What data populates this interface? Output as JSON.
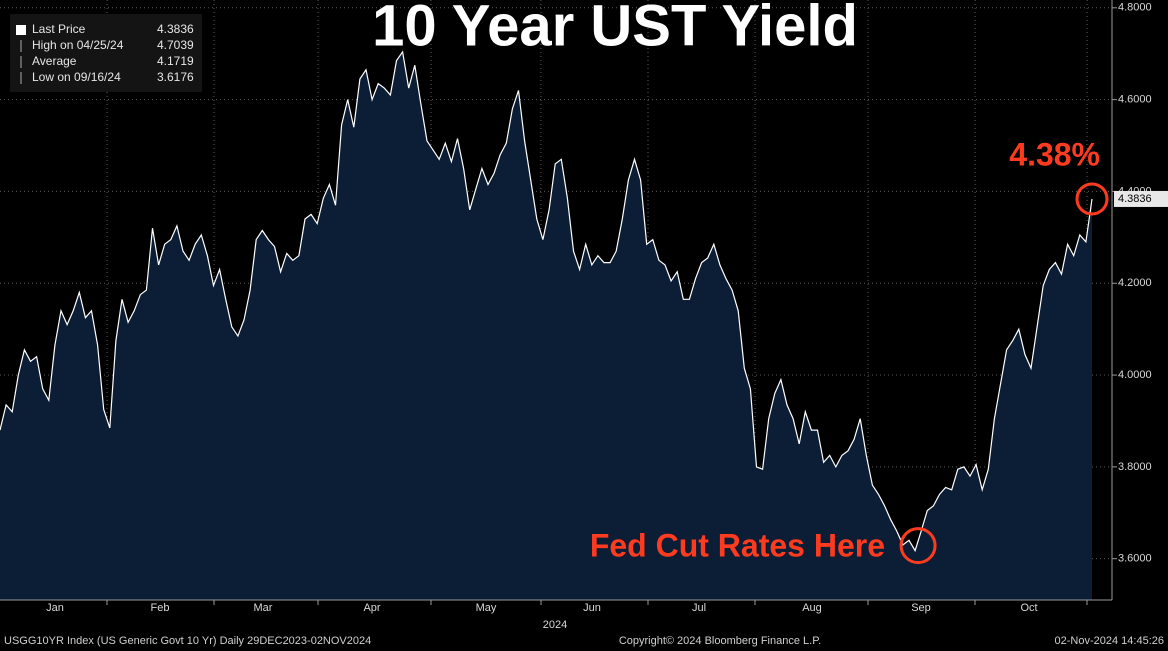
{
  "chart_data": {
    "type": "area",
    "title": "10 Year UST Yield",
    "color": "#ffffff",
    "fill": "#0c1d36",
    "ylim": [
      3.51,
      4.817
    ],
    "yticks": [
      {
        "value": 3.6,
        "label": "3.6000"
      },
      {
        "value": 3.8,
        "label": "3.8000"
      },
      {
        "value": 4.0,
        "label": "4.0000"
      },
      {
        "value": 4.2,
        "label": "4.2000"
      },
      {
        "value": 4.4,
        "label": "4.4000"
      },
      {
        "value": 4.6,
        "label": "4.6000"
      },
      {
        "value": 4.8,
        "label": "4.8000"
      }
    ],
    "grid": true,
    "xticks": [
      "Jan",
      "Feb",
      "Mar",
      "Apr",
      "May",
      "Jun",
      "Jul",
      "Aug",
      "Sep",
      "Oct"
    ],
    "year_label": "2024",
    "series": [
      {
        "name": "Last Price",
        "values": [
          3.88,
          3.935,
          3.92,
          4.0,
          4.055,
          4.03,
          4.04,
          3.97,
          3.945,
          4.065,
          4.14,
          4.11,
          4.14,
          4.18,
          4.125,
          4.14,
          4.065,
          3.925,
          3.885,
          4.075,
          4.165,
          4.115,
          4.14,
          4.175,
          4.185,
          4.32,
          4.24,
          4.285,
          4.295,
          4.325,
          4.27,
          4.25,
          4.285,
          4.305,
          4.26,
          4.195,
          4.23,
          4.165,
          4.105,
          4.085,
          4.12,
          4.185,
          4.295,
          4.315,
          4.295,
          4.28,
          4.225,
          4.265,
          4.25,
          4.26,
          4.34,
          4.35,
          4.33,
          4.385,
          4.415,
          4.37,
          4.545,
          4.6,
          4.54,
          4.645,
          4.665,
          4.6,
          4.635,
          4.625,
          4.61,
          4.685,
          4.7039,
          4.625,
          4.675,
          4.59,
          4.51,
          4.49,
          4.47,
          4.505,
          4.465,
          4.515,
          4.45,
          4.36,
          4.405,
          4.45,
          4.415,
          4.44,
          4.48,
          4.505,
          4.58,
          4.62,
          4.51,
          4.425,
          4.34,
          4.295,
          4.36,
          4.46,
          4.47,
          4.385,
          4.27,
          4.23,
          4.285,
          4.24,
          4.26,
          4.245,
          4.245,
          4.27,
          4.34,
          4.425,
          4.47,
          4.425,
          4.285,
          4.295,
          4.25,
          4.24,
          4.205,
          4.225,
          4.165,
          4.165,
          4.21,
          4.245,
          4.255,
          4.285,
          4.24,
          4.21,
          4.185,
          4.14,
          4.015,
          3.97,
          3.8,
          3.795,
          3.905,
          3.96,
          3.99,
          3.935,
          3.905,
          3.85,
          3.92,
          3.88,
          3.88,
          3.81,
          3.825,
          3.8,
          3.825,
          3.835,
          3.86,
          3.905,
          3.825,
          3.76,
          3.74,
          3.715,
          3.685,
          3.66,
          3.63,
          3.64,
          3.6176,
          3.66,
          3.705,
          3.715,
          3.74,
          3.755,
          3.75,
          3.795,
          3.8,
          3.78,
          3.805,
          3.75,
          3.795,
          3.905,
          3.98,
          4.055,
          4.075,
          4.1,
          4.045,
          4.015,
          4.105,
          4.195,
          4.23,
          4.245,
          4.22,
          4.285,
          4.26,
          4.305,
          4.29,
          4.3836
        ]
      }
    ],
    "legend": [
      {
        "label": "Last Price",
        "value": 4.3836
      },
      {
        "label": "High on 04/25/24",
        "value": 4.7039
      },
      {
        "label": "Average",
        "value": 4.1719
      },
      {
        "label": "Low on 09/16/24",
        "value": 3.6176
      }
    ],
    "annotations": [
      "4.38%",
      "Fed Cut Rates Here"
    ],
    "footer": [
      "USGG10YR Index (US Generic Govt 10 Yr)  Daily 29DEC2023-02NOV2024",
      "Copyright© 2024 Bloomberg Finance L.P.",
      "02-Nov-2024 14:45:26"
    ]
  }
}
